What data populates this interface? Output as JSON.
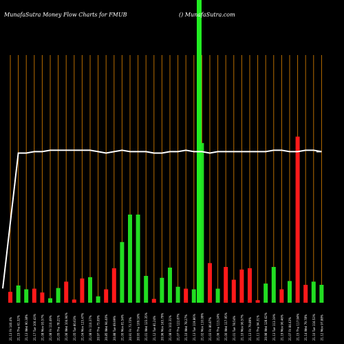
{
  "chart_data": {
    "type": "bar",
    "title": "MunafaSutra  Money Flow  Charts for FMUB",
    "watermark": "() MunafaSutra.com",
    "colors": {
      "up": "#22dd22",
      "down": "#ff1a1a",
      "grid": "#b86d00",
      "line": "#ffffff",
      "spike": "#22ee22",
      "background": "#000000"
    },
    "categories": [
      "21.13 Fri 140.4%",
      "21.15 Thu 61.32%",
      "21.13 Wed 90.38%",
      "21.17 Tue 100.43%",
      "21.08 Mon 93.57%",
      "21.08 Fri 110.49%",
      "21.05 Thu 78.21%",
      "21.06 Wed 104.94%",
      "21.05 Tue 80.63%",
      "21.04 Mon 123.47%",
      "21.08 Fri 110.37%",
      "20.97 Thu 73.09%",
      "20.85 Wed 94.40%",
      "20.88 Tue 69.99%",
      "21.00 Mon 81.54%",
      "20.91 Fri 73.73%",
      "20.93 Thu 109.16%",
      "21.01 Wed 123.35%",
      "21.12 Tue 81.24%",
      "20.96 Mon 163.79%",
      "21.08 Fri 102.31%",
      "21.07 Thu 122.87%",
      "21.10 Wed 78.27%",
      "21.13 Tue 119.86%",
      "21.02 Mon 110.99%",
      "21.03 Fri 86.87%",
      "21.06 Thu 113.24%",
      "21.00 Wed 117.95%",
      "21.01 Tue 78.54%",
      "21.10 Mon 90.57%",
      "21.13 Fri 79.89%",
      "21.11 Thu 94.31%",
      "20.98 Wed 128.62%",
      "21.13 Tue 113.19%",
      "21.19 Mon 90.46%",
      "21.07 Fri 84.43%",
      "21.15 Thu 117.94%",
      "21.14 Wed 79.78%",
      "21.10 Tue 116.53%",
      "21.12 Mon 97.88%"
    ],
    "series": [
      {
        "values": [
          17,
          27,
          21,
          22,
          16,
          7,
          23,
          33,
          5,
          38,
          40,
          10,
          21,
          54,
          95,
          138,
          138,
          42,
          6,
          39,
          55,
          25,
          22,
          21,
          250,
          62,
          22,
          56,
          36,
          52,
          54,
          4,
          30,
          56,
          21,
          34,
          260,
          28,
          33,
          28
        ],
        "direction": [
          "down",
          "up",
          "up",
          "down",
          "down",
          "up",
          "up",
          "down",
          "down",
          "down",
          "up",
          "up",
          "down",
          "down",
          "up",
          "up",
          "up",
          "up",
          "down",
          "up",
          "up",
          "up",
          "down",
          "up",
          "up",
          "down",
          "up",
          "down",
          "down",
          "down",
          "red",
          "down",
          "up",
          "up",
          "down",
          "up",
          "down",
          "down",
          "up",
          "up"
        ]
      }
    ],
    "price_line": [
      20.6,
      21.55,
      21.55,
      21.56,
      21.56,
      21.57,
      21.57,
      21.57,
      21.57,
      21.57,
      21.57,
      21.56,
      21.55,
      21.56,
      21.57,
      21.56,
      21.56,
      21.56,
      21.55,
      21.55,
      21.56,
      21.56,
      21.57,
      21.56,
      21.56,
      21.55,
      21.56,
      21.56,
      21.56,
      21.56,
      21.56,
      21.56,
      21.56,
      21.57,
      21.57,
      21.56,
      21.56,
      21.57,
      21.57,
      21.56
    ],
    "price_range": [
      20.5,
      21.9
    ],
    "ylim": [
      0,
      280
    ],
    "grid": true
  }
}
